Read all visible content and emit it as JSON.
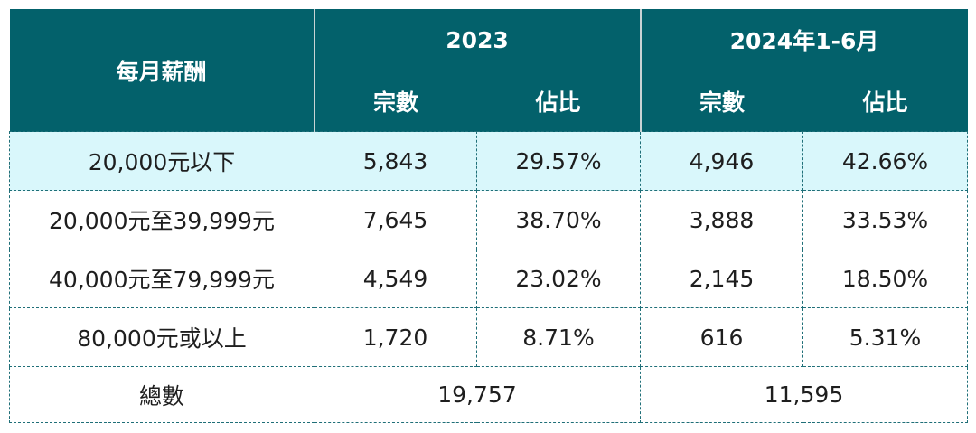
{
  "table": {
    "header": {
      "title": "每月薪酬",
      "groups": [
        "2023",
        "2024年1-6月"
      ],
      "subheaders": [
        "宗數",
        "佔比",
        "宗數",
        "佔比"
      ]
    },
    "rows": [
      [
        "20,000元以下",
        "5,843",
        "29.57%",
        "4,946",
        "42.66%"
      ],
      [
        "20,000元至39,999元",
        "7,645",
        "38.70%",
        "3,888",
        "33.53%"
      ],
      [
        "40,000元至79,999元",
        "4,549",
        "23.02%",
        "2,145",
        "18.50%"
      ],
      [
        "80,000元或以上",
        "1,720",
        "8.71%",
        "616",
        "5.31%"
      ]
    ],
    "total": {
      "label": "總數",
      "values": [
        "19,757",
        "11,595"
      ]
    }
  }
}
